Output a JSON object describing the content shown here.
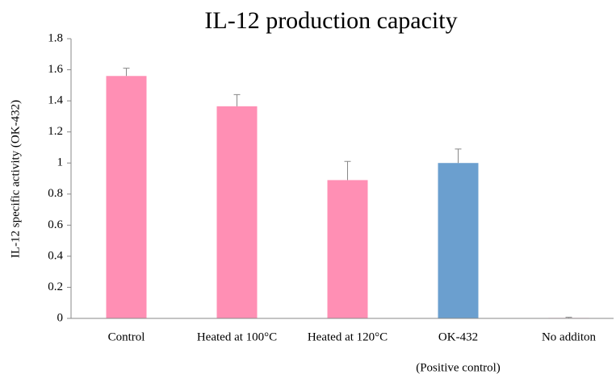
{
  "chart_data": {
    "type": "bar",
    "title": "IL-12 production capacity",
    "ylabel": "IL-12 specific activity (OK-432)",
    "categories": [
      "Control",
      "Heated at 100°C",
      "Heated at 120°C",
      "OK-432",
      "No additon"
    ],
    "category_notes": [
      null,
      null,
      null,
      "(Positive control)",
      null
    ],
    "values": [
      1.56,
      1.365,
      0.89,
      1.0,
      0.003
    ],
    "errors": [
      0.05,
      0.075,
      0.12,
      0.09,
      0.004
    ],
    "colors": [
      "#ff8fb4",
      "#ff8fb4",
      "#ff8fb4",
      "#6b9fcf",
      "#ff8fb4"
    ],
    "ylim": [
      0,
      1.8
    ],
    "yticks": [
      0,
      0.2,
      0.4,
      0.6,
      0.8,
      1,
      1.2,
      1.4,
      1.6,
      1.8
    ],
    "grid": false
  }
}
